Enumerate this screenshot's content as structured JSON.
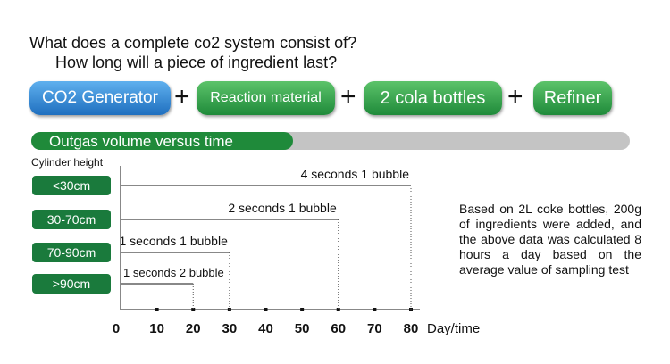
{
  "header": {
    "question1": "What does a complete co2 system consist of?",
    "question2": "How long will a piece of ingredient last?"
  },
  "components": [
    "CO2 Generator",
    "Reaction material",
    "2 cola bottles",
    "Refiner"
  ],
  "banner": "Outgas volume versus time",
  "chart": {
    "y_label": "Cylinder height",
    "x_label": "Day/time",
    "xlim": [
      0,
      80
    ],
    "xticks": [
      0,
      10,
      20,
      30,
      40,
      50,
      60,
      70,
      80
    ],
    "rows": [
      {
        "height": "<30cm",
        "rate": "4 seconds 1 bubble",
        "days": 80
      },
      {
        "height": "30-70cm",
        "rate": "2 seconds 1 bubble",
        "days": 60
      },
      {
        "height": "70-90cm",
        "rate": "1 seconds 1 bubble",
        "days": 30
      },
      {
        "height": ">90cm",
        "rate": "1 seconds 2 bubble",
        "days": 20
      }
    ]
  },
  "note": "Based on 2L coke bottles, 200g of ingredients were added, and the above data was calculated 8 hours a day based on the average value of sampling test"
}
